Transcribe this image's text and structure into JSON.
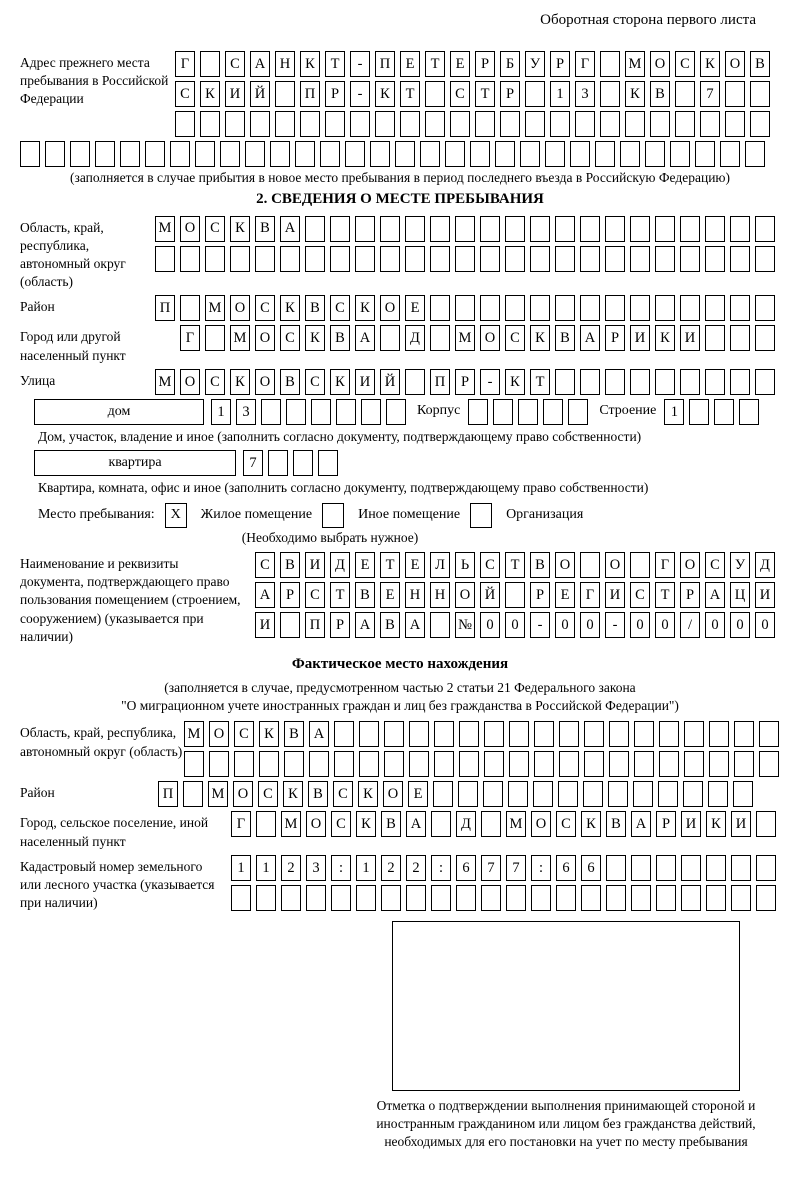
{
  "page": {
    "header_note": "Оборотная сторона первого листа"
  },
  "prev_address": {
    "label": "Адрес прежнего места пребывания в Российской Федерации",
    "rows": [
      {
        "chars": [
          "Г",
          "",
          "С",
          "А",
          "Н",
          "К",
          "Т",
          "-",
          "П",
          "Е",
          "Т",
          "Е",
          "Р",
          "Б",
          "У",
          "Р",
          "Г",
          "",
          "М",
          "О",
          "С",
          "К",
          "О",
          "В"
        ],
        "total": 24
      },
      {
        "chars": [
          "С",
          "К",
          "И",
          "Й",
          "",
          "П",
          "Р",
          "-",
          "К",
          "Т",
          "",
          "С",
          "Т",
          "Р",
          "",
          "1",
          "3",
          "",
          "К",
          "В",
          "",
          "7"
        ],
        "total": 24
      },
      {
        "total": 24
      }
    ],
    "row4": {
      "total": 30
    },
    "note": "(заполняется в случае прибытия в новое место пребывания в период последнего въезда в Российскую Федерацию)"
  },
  "section2": {
    "title": "2. СВЕДЕНИЯ О МЕСТЕ ПРЕБЫВАНИЯ",
    "region": {
      "label": "Область, край, республика, автономный округ (область)",
      "rows": [
        {
          "chars": [
            "М",
            "О",
            "С",
            "К",
            "В",
            "А"
          ],
          "total": 25
        },
        {
          "total": 25
        }
      ]
    },
    "district": {
      "label": "Район",
      "cells": {
        "chars": [
          "П",
          "",
          "М",
          "О",
          "С",
          "К",
          "В",
          "С",
          "К",
          "О",
          "Е"
        ],
        "total": 25
      }
    },
    "city": {
      "label": "Город или другой населенный пункт",
      "cells": {
        "chars": [
          "Г",
          "",
          "М",
          "О",
          "С",
          "К",
          "В",
          "А",
          "",
          "Д",
          "",
          "М",
          "О",
          "С",
          "К",
          "В",
          "А",
          "Р",
          "И",
          "К",
          "И"
        ],
        "total": 24
      }
    },
    "street": {
      "label": "Улица",
      "cells": {
        "chars": [
          "М",
          "О",
          "С",
          "К",
          "О",
          "В",
          "С",
          "К",
          "И",
          "Й",
          "",
          "П",
          "Р",
          "-",
          "К",
          "Т"
        ],
        "total": 25
      }
    },
    "house": {
      "label": "дом",
      "number": {
        "chars": [
          "1",
          "3"
        ],
        "total": 8
      },
      "korpus_label": "Корпус",
      "korpus": {
        "total": 5
      },
      "stroenie_label": "Строение",
      "stroenie": {
        "chars": [
          "1"
        ],
        "total": 4
      }
    },
    "house_note": "Дом, участок, владение и иное (заполнить согласно документу, подтверждающему право собственности)",
    "apartment": {
      "label": "квартира",
      "cells": {
        "chars": [
          "7"
        ],
        "total": 4
      }
    },
    "apartment_note": "Квартира, комната, офис и иное (заполнить согласно документу, подтверждающему право собственности)",
    "stay": {
      "label": "Место пребывания:",
      "options": [
        {
          "label": "Жилое помещение",
          "mark": "X"
        },
        {
          "label": "Иное помещение",
          "mark": ""
        },
        {
          "label": "Организация",
          "mark": ""
        }
      ],
      "note": "(Необходимо выбрать нужное)"
    },
    "doc": {
      "label": "Наименование и реквизиты документа, подтверждающего право пользования помещением (строением, сооружением) (указывается при наличии)",
      "rows": [
        {
          "chars": [
            "С",
            "В",
            "И",
            "Д",
            "Е",
            "Т",
            "Е",
            "Л",
            "Ь",
            "С",
            "Т",
            "В",
            "О",
            "",
            "О",
            "",
            "Г",
            "О",
            "С",
            "У",
            "Д"
          ],
          "total": 21
        },
        {
          "chars": [
            "А",
            "Р",
            "С",
            "Т",
            "В",
            "Е",
            "Н",
            "Н",
            "О",
            "Й",
            "",
            "Р",
            "Е",
            "Г",
            "И",
            "С",
            "Т",
            "Р",
            "А",
            "Ц",
            "И"
          ],
          "total": 21
        },
        {
          "chars": [
            "И",
            "",
            "П",
            "Р",
            "А",
            "В",
            "А",
            "",
            "№",
            "0",
            "0",
            "-",
            "0",
            "0",
            "-",
            "0",
            "0",
            "/",
            "0",
            "0",
            "0"
          ],
          "total": 21
        }
      ]
    }
  },
  "actual": {
    "title": "Фактическое место нахождения",
    "note1": "(заполняется в случае, предусмотренном частью 2 статьи 21 Федерального закона",
    "note2": "\"О миграционном учете иностранных граждан и лиц без гражданства в Российской Федерации\")",
    "region": {
      "label": "Область, край, республика, автономный округ (область)",
      "rows": [
        {
          "chars": [
            "М",
            "О",
            "С",
            "К",
            "В",
            "А"
          ],
          "total": 24
        },
        {
          "total": 24
        }
      ]
    },
    "district": {
      "label": "Район",
      "cells": {
        "chars": [
          "П",
          "",
          "М",
          "О",
          "С",
          "К",
          "В",
          "С",
          "К",
          "О",
          "Е"
        ],
        "total": 24
      }
    },
    "city": {
      "label": "Город, сельское поселение, иной населенный пункт",
      "cells": {
        "chars": [
          "Г",
          "",
          "М",
          "О",
          "С",
          "К",
          "В",
          "А",
          "",
          "Д",
          "",
          "М",
          "О",
          "С",
          "К",
          "В",
          "А",
          "Р",
          "И",
          "К",
          "И"
        ],
        "total": 22
      }
    },
    "cadastral": {
      "label": "Кадастровый номер земельного или лесного участка (указывается при наличии)",
      "rows": [
        {
          "chars": [
            "1",
            "1",
            "2",
            "3",
            ":",
            "1",
            "2",
            "2",
            ":",
            "6",
            "7",
            "7",
            ":",
            "6",
            "6"
          ],
          "total": 22
        },
        {
          "total": 22
        }
      ]
    },
    "stamp_note": "Отметка о подтверждении выполнения принимающей стороной и иностранным гражданином или лицом без гражданства действий, необходимых для его постановки на учет по месту пребывания"
  }
}
